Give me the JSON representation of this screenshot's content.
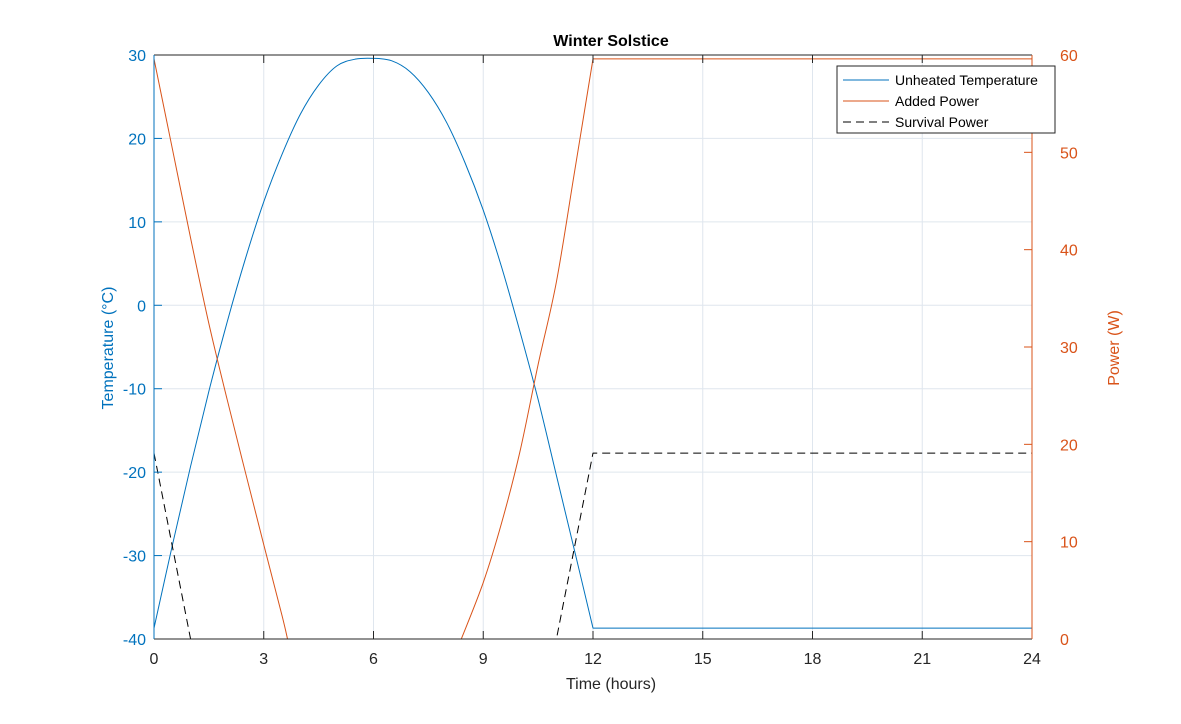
{
  "chart_data": {
    "type": "line",
    "title": "Winter Solstice",
    "xlabel": "Time (hours)",
    "ylabel_left": "Temperature (°C)",
    "ylabel_right": "Power (W)",
    "xlim": [
      0,
      24
    ],
    "ylim_left": [
      -40,
      30
    ],
    "ylim_right": [
      0,
      60
    ],
    "xticks": [
      "0",
      "3",
      "6",
      "9",
      "12",
      "15",
      "18",
      "21",
      "24"
    ],
    "yticks_left": [
      "-40",
      "-30",
      "-20",
      "-10",
      "0",
      "10",
      "20",
      "30"
    ],
    "yticks_right": [
      "0",
      "10",
      "20",
      "30",
      "40",
      "50",
      "60"
    ],
    "grid": true,
    "legend_position": "top-right",
    "colors": {
      "left_axis": "#0072BD",
      "right_axis": "#D95319",
      "survival": "#000000",
      "grid": "#dfe6ee",
      "frame": "#262626"
    },
    "series": [
      {
        "name": "Unheated Temperature",
        "axis": "left",
        "style": "solid",
        "x": [
          0,
          0.5,
          1,
          1.5,
          2,
          2.5,
          3,
          3.5,
          4,
          4.5,
          5,
          5.5,
          6,
          6.5,
          7,
          7.5,
          8,
          8.5,
          9,
          9.5,
          10,
          10.5,
          11,
          11.5,
          12,
          15,
          18,
          21,
          24
        ],
        "y": [
          -38.7,
          -28.8,
          -19.3,
          -10.3,
          -2.0,
          5.6,
          12.4,
          18.1,
          22.9,
          26.4,
          28.7,
          29.5,
          29.6,
          29.3,
          28.0,
          25.5,
          21.9,
          17.1,
          11.4,
          4.6,
          -3.1,
          -11.3,
          -20.4,
          -29.5,
          -38.7,
          -38.7,
          -38.7,
          -38.7,
          -38.7
        ]
      },
      {
        "name": "Added Power",
        "axis": "right",
        "style": "solid",
        "x": [
          0,
          0.5,
          1,
          1.5,
          2,
          2.5,
          3,
          3.5,
          3.65,
          8.4,
          9,
          9.5,
          10,
          10.5,
          11,
          11.5,
          12,
          24
        ],
        "y": [
          59.6,
          50.4,
          41.2,
          32.4,
          24.6,
          17.1,
          9.7,
          2.4,
          0,
          0,
          5.8,
          11.9,
          19.2,
          28.2,
          36.7,
          48.1,
          59.6,
          59.6
        ]
      },
      {
        "name": "Survival Power",
        "axis": "right",
        "style": "dashed",
        "x": [
          0,
          1,
          11,
          12,
          24
        ],
        "y": [
          19.1,
          0,
          0,
          19.1,
          19.1
        ]
      }
    ]
  }
}
